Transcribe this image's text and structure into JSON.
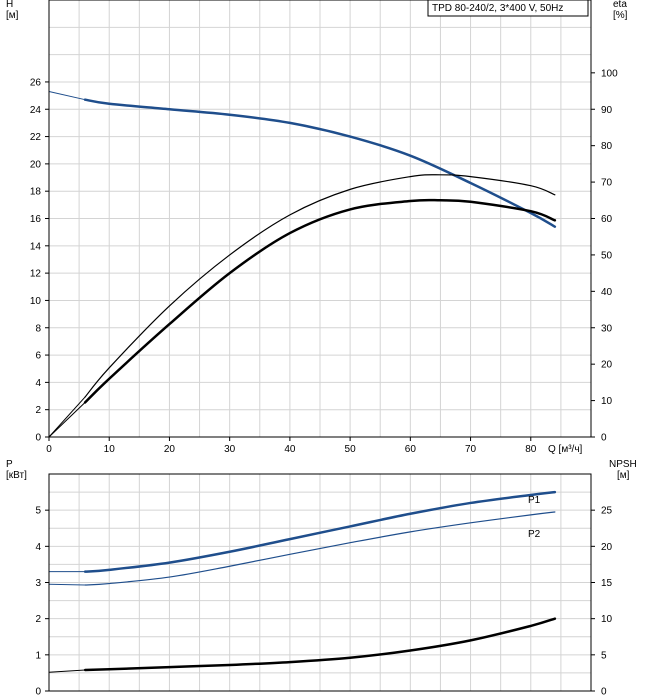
{
  "chart_data": [
    {
      "type": "line",
      "title": "TPD 80-240/2, 3*400 V, 50Hz",
      "xlabel": "Q [м³/ч]",
      "x_ticks": [
        "0",
        "10",
        "20",
        "30",
        "40",
        "50",
        "60",
        "70",
        "80"
      ],
      "xlim": [
        0,
        90
      ],
      "ylabel_left": [
        "H",
        "[м]"
      ],
      "ylim_left": [
        0,
        32
      ],
      "y_ticks_left": [
        "0",
        "2",
        "4",
        "6",
        "8",
        "10",
        "12",
        "14",
        "16",
        "18",
        "20",
        "22",
        "24",
        "26"
      ],
      "ylabel_right": [
        "eta",
        "[%]"
      ],
      "ylim_right": [
        0,
        120
      ],
      "y_ticks_right": [
        "0",
        "10",
        "20",
        "30",
        "40",
        "50",
        "60",
        "70",
        "80",
        "90",
        "100"
      ],
      "grid": true,
      "series": [
        {
          "axis": "left",
          "color": "#1f4e8c",
          "width": 2.5,
          "ext_width": 1,
          "x": [
            0,
            6,
            10,
            20,
            30,
            40,
            50,
            60,
            70,
            80,
            84
          ],
          "y": [
            25.3,
            24.7,
            24.4,
            24.0,
            23.6,
            23.0,
            22.0,
            20.6,
            18.6,
            16.4,
            15.4
          ]
        },
        {
          "axis": "right",
          "color": "#000000",
          "width": 1.2,
          "ext_width": 1,
          "x": [
            0,
            6,
            10,
            20,
            30,
            40,
            50,
            60,
            65,
            70,
            80,
            84
          ],
          "y": [
            0,
            11,
            19,
            36,
            50,
            61,
            68,
            71.5,
            72,
            71.5,
            69,
            66.5
          ]
        },
        {
          "axis": "right",
          "color": "#000000",
          "width": 2.5,
          "ext_width": 1,
          "x": [
            0,
            6,
            10,
            20,
            30,
            40,
            50,
            60,
            65,
            70,
            80,
            84
          ],
          "y": [
            0,
            9.5,
            16,
            31,
            45,
            56,
            62.5,
            64.8,
            65,
            64.6,
            62,
            59.5
          ]
        }
      ]
    },
    {
      "type": "line",
      "xlim": [
        0,
        90
      ],
      "ylabel_left": [
        "P",
        "[кВт]"
      ],
      "ylim_left": [
        0,
        6
      ],
      "y_ticks_left": [
        "0",
        "1",
        "2",
        "3",
        "4",
        "5"
      ],
      "ylabel_right": [
        "NPSH",
        "[м]"
      ],
      "ylim_right": [
        0,
        30
      ],
      "y_ticks_right": [
        "0",
        "5",
        "10",
        "15",
        "20",
        "25"
      ],
      "grid": true,
      "series": [
        {
          "name": "P1",
          "axis": "left",
          "color": "#1f4e8c",
          "width": 2.5,
          "ext_width": 1,
          "x": [
            0,
            6,
            10,
            20,
            30,
            40,
            50,
            60,
            70,
            80,
            84
          ],
          "y": [
            3.3,
            3.3,
            3.35,
            3.55,
            3.85,
            4.2,
            4.55,
            4.9,
            5.2,
            5.42,
            5.5
          ]
        },
        {
          "name": "P2",
          "axis": "left",
          "color": "#1f4e8c",
          "width": 1.2,
          "ext_width": 1,
          "x": [
            0,
            6,
            10,
            20,
            30,
            40,
            50,
            60,
            70,
            80,
            84
          ],
          "y": [
            2.95,
            2.93,
            2.97,
            3.15,
            3.45,
            3.78,
            4.1,
            4.4,
            4.65,
            4.87,
            4.95
          ]
        },
        {
          "axis": "right",
          "color": "#000000",
          "width": 2.5,
          "ext_width": 1,
          "x": [
            0,
            6,
            10,
            20,
            30,
            40,
            50,
            60,
            70,
            80,
            84
          ],
          "y": [
            2.6,
            2.9,
            3.0,
            3.3,
            3.6,
            4.0,
            4.6,
            5.6,
            7.0,
            9.0,
            10.0
          ]
        }
      ]
    }
  ]
}
